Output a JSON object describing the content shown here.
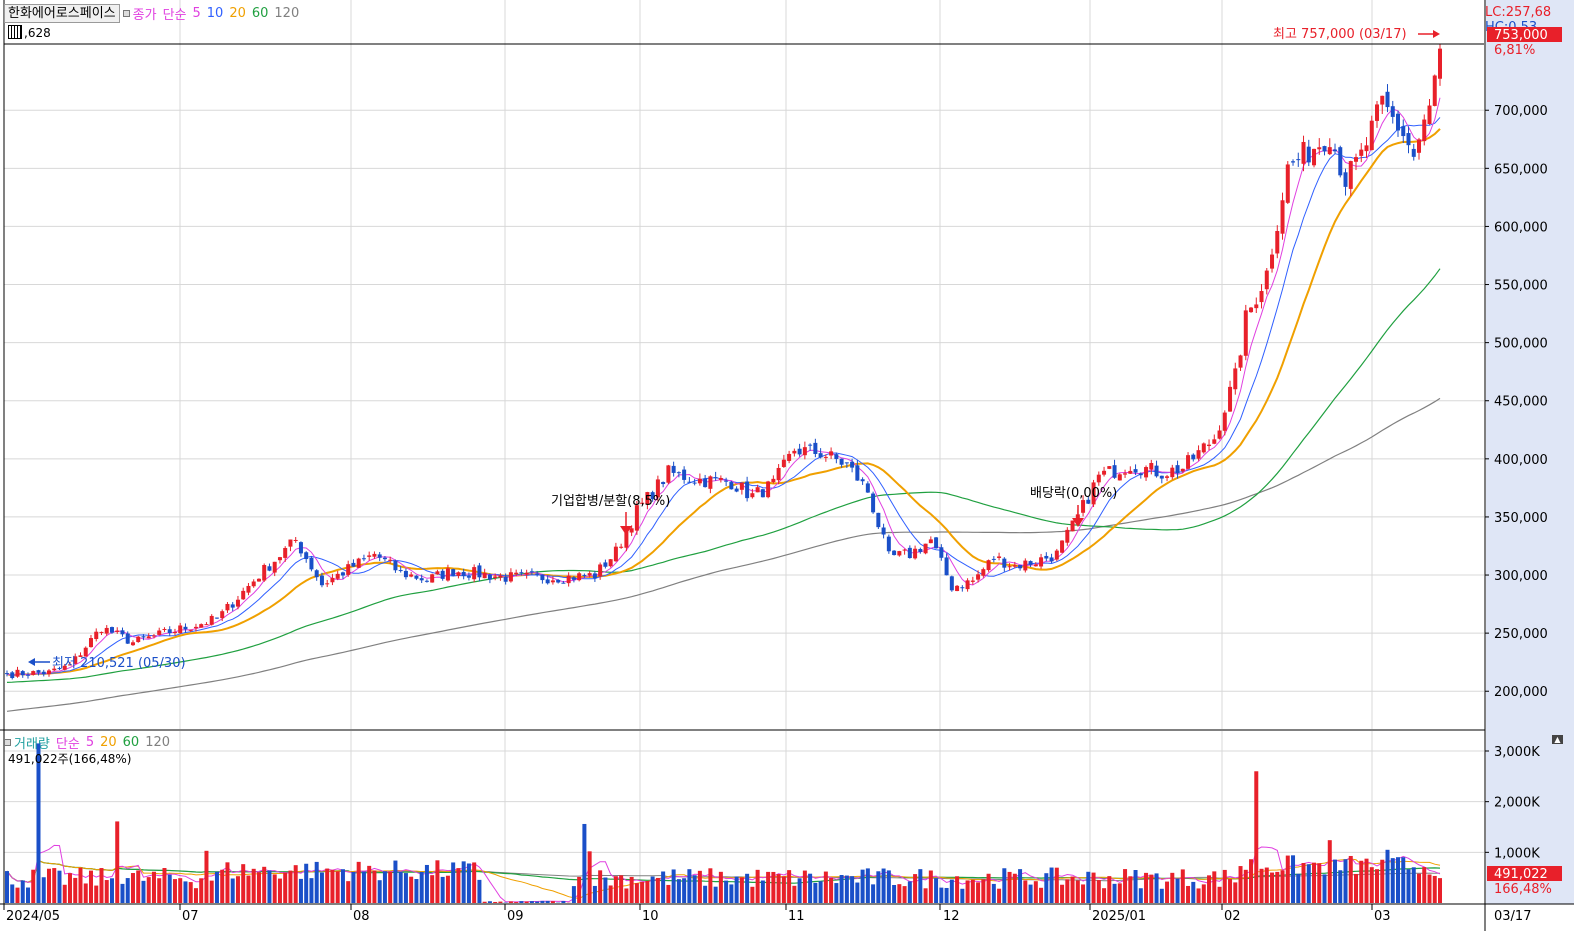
{
  "header": {
    "stock_name": "한화에어로스페이스",
    "price_legend": {
      "label": "종가",
      "ma_type": "단순",
      "periods": [
        {
          "v": "5",
          "color": "#e040e0"
        },
        {
          "v": "10",
          "color": "#3060ff"
        },
        {
          "v": "20",
          "color": "#f0a000"
        },
        {
          "v": "60",
          "color": "#20a040"
        },
        {
          "v": "120",
          "color": "#808080"
        }
      ]
    },
    "sub_value": ",628",
    "top_right": [
      "LC:257,68",
      "HC:0,53"
    ]
  },
  "volume_legend": {
    "label": "거래량",
    "ma_type": "단순",
    "periods": [
      {
        "v": "5",
        "color": "#e040e0"
      },
      {
        "v": "20",
        "color": "#f0a000"
      },
      {
        "v": "60",
        "color": "#20a040"
      },
      {
        "v": "120",
        "color": "#808080"
      }
    ],
    "current": "491,022주(166,48%)"
  },
  "colors": {
    "up": "#e8202a",
    "down": "#1a4fc8",
    "ma5": "#e040e0",
    "ma10": "#3060ff",
    "ma20": "#f0a000",
    "ma60": "#20a040",
    "ma120": "#808080",
    "grid": "#d8d8d8"
  },
  "chart_data": {
    "type": "candlestick",
    "price_axis": {
      "ylim": [
        175000,
        770000
      ],
      "ticks": [
        "700,000",
        "650,000",
        "600,000",
        "550,000",
        "500,000",
        "450,000",
        "400,000",
        "350,000",
        "300,000",
        "250,000",
        "200,000"
      ]
    },
    "volume_axis": {
      "ylim": [
        0,
        3400
      ],
      "unit": "K",
      "ticks": [
        "3,000K",
        "2,000K",
        "1,000K"
      ]
    },
    "x_labels": [
      "2024/05",
      "07",
      "08",
      "09",
      "10",
      "11",
      "12",
      "2025/01",
      "02",
      "03",
      "03/17"
    ],
    "price_markers": {
      "current": "753,000",
      "change": "6,81%",
      "current_value": 753000
    },
    "volume_markers": {
      "current": "491,022",
      "ratio": "166,48%"
    },
    "annotations": {
      "high": "최고 757,000 (03/17)",
      "low": "최저 210,521 (05/30)",
      "event1": "기업합병/분할(8,5%)",
      "event2": "배당락(0,00%)"
    },
    "anchors_close": [
      [
        0,
        215000
      ],
      [
        8,
        216000
      ],
      [
        12,
        222000
      ],
      [
        18,
        255000
      ],
      [
        24,
        242000
      ],
      [
        30,
        250000
      ],
      [
        40,
        262000
      ],
      [
        48,
        300000
      ],
      [
        55,
        330000
      ],
      [
        60,
        292000
      ],
      [
        65,
        305000
      ],
      [
        70,
        318000
      ],
      [
        75,
        302000
      ],
      [
        80,
        296000
      ],
      [
        85,
        304000
      ],
      [
        95,
        298000
      ],
      [
        106,
        298000
      ],
      [
        112,
        300000
      ],
      [
        116,
        320000
      ],
      [
        120,
        355000
      ],
      [
        126,
        388000
      ],
      [
        132,
        382000
      ],
      [
        138,
        380000
      ],
      [
        142,
        368000
      ],
      [
        146,
        378000
      ],
      [
        150,
        408000
      ],
      [
        155,
        405000
      ],
      [
        160,
        395000
      ],
      [
        164,
        372000
      ],
      [
        168,
        315000
      ],
      [
        172,
        318000
      ],
      [
        176,
        330000
      ],
      [
        180,
        290000
      ],
      [
        184,
        295000
      ],
      [
        188,
        315000
      ],
      [
        192,
        308000
      ],
      [
        196,
        312000
      ],
      [
        200,
        318000
      ],
      [
        204,
        350000
      ],
      [
        208,
        385000
      ],
      [
        214,
        395000
      ],
      [
        220,
        388000
      ],
      [
        224,
        392000
      ],
      [
        230,
        418000
      ],
      [
        234,
        470000
      ],
      [
        236,
        520000
      ],
      [
        240,
        560000
      ],
      [
        244,
        650000
      ],
      [
        248,
        665000
      ],
      [
        252,
        680000
      ],
      [
        255,
        640000
      ],
      [
        258,
        660000
      ],
      [
        262,
        705000
      ],
      [
        266,
        680000
      ],
      [
        268,
        660000
      ],
      [
        271,
        700000
      ],
      [
        273,
        753000
      ]
    ],
    "volume_spikes": [
      [
        6,
        3150
      ],
      [
        21,
        1610
      ],
      [
        38,
        1030
      ],
      [
        110,
        1560
      ],
      [
        111,
        1020
      ],
      [
        238,
        2600
      ],
      [
        252,
        1240
      ],
      [
        263,
        1050
      ]
    ],
    "ma_smoothing": {
      "ma60": 42,
      "ma120": 70
    }
  }
}
